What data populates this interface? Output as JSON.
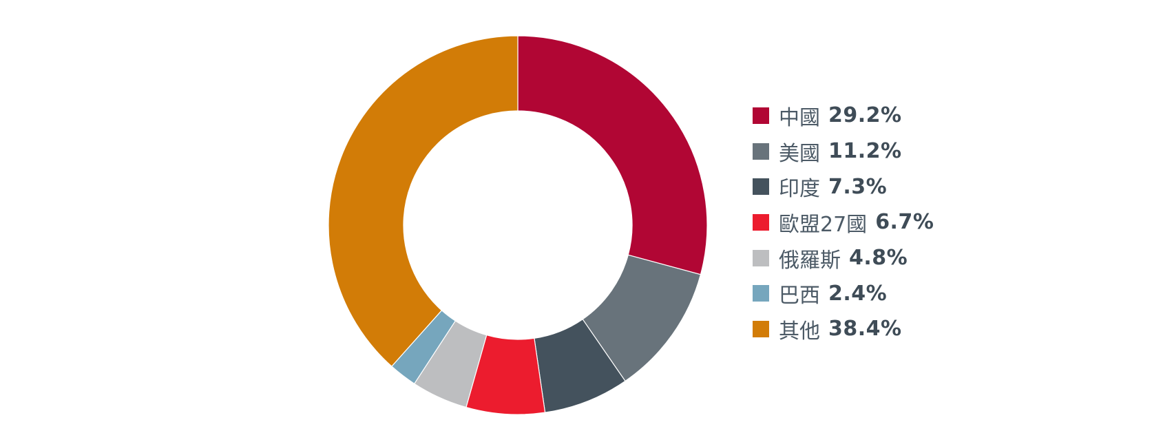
{
  "chart_data": {
    "type": "pie",
    "donut": true,
    "title": "",
    "legend_position": "right",
    "unit": "%",
    "slices": [
      {
        "label": "中國",
        "value": 29.2,
        "value_label": "29.2%",
        "color": "#b10634"
      },
      {
        "label": "美國",
        "value": 11.2,
        "value_label": "11.2%",
        "color": "#68737b"
      },
      {
        "label": "印度",
        "value": 7.3,
        "value_label": "7.3%",
        "color": "#44525d"
      },
      {
        "label": "歐盟27國",
        "value": 6.7,
        "value_label": "6.7%",
        "color": "#ec1c2e"
      },
      {
        "label": "俄羅斯",
        "value": 4.8,
        "value_label": "4.8%",
        "color": "#bdbec0"
      },
      {
        "label": "巴西",
        "value": 2.4,
        "value_label": "2.4%",
        "color": "#76a6bd"
      },
      {
        "label": "其他",
        "value": 38.4,
        "value_label": "38.4%",
        "color": "#d27c07"
      }
    ]
  }
}
